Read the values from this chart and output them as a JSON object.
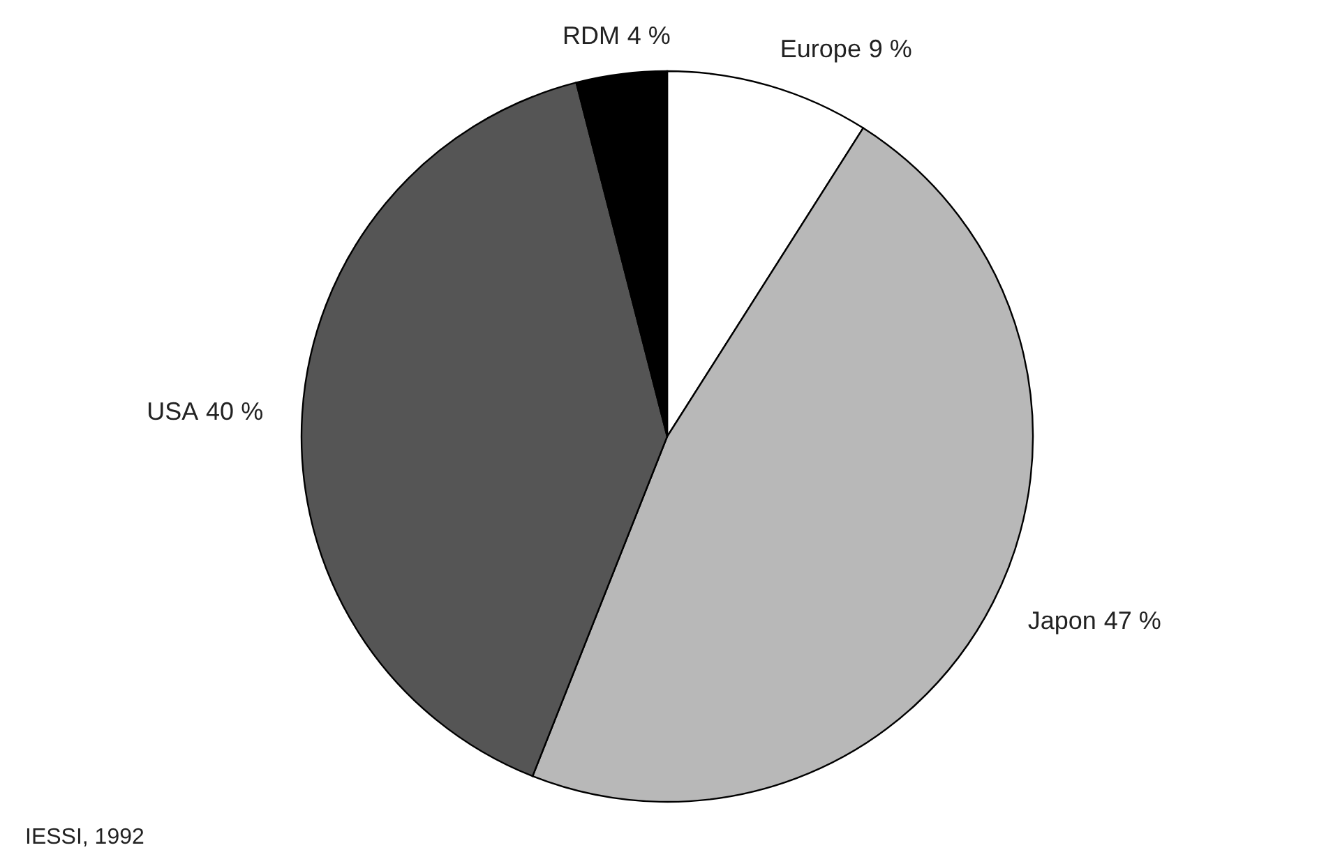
{
  "chart_data": {
    "type": "pie",
    "categories": [
      "Europe",
      "Japon",
      "USA",
      "RDM"
    ],
    "values": [
      9,
      47,
      40,
      4
    ],
    "colors": [
      "#ffffff",
      "#b8b8b8",
      "#555555",
      "#000000"
    ],
    "value_labels": [
      "9 %",
      "47 %",
      "40 %",
      "4 %"
    ],
    "annotations": [
      "IESSI, 1992"
    ]
  }
}
